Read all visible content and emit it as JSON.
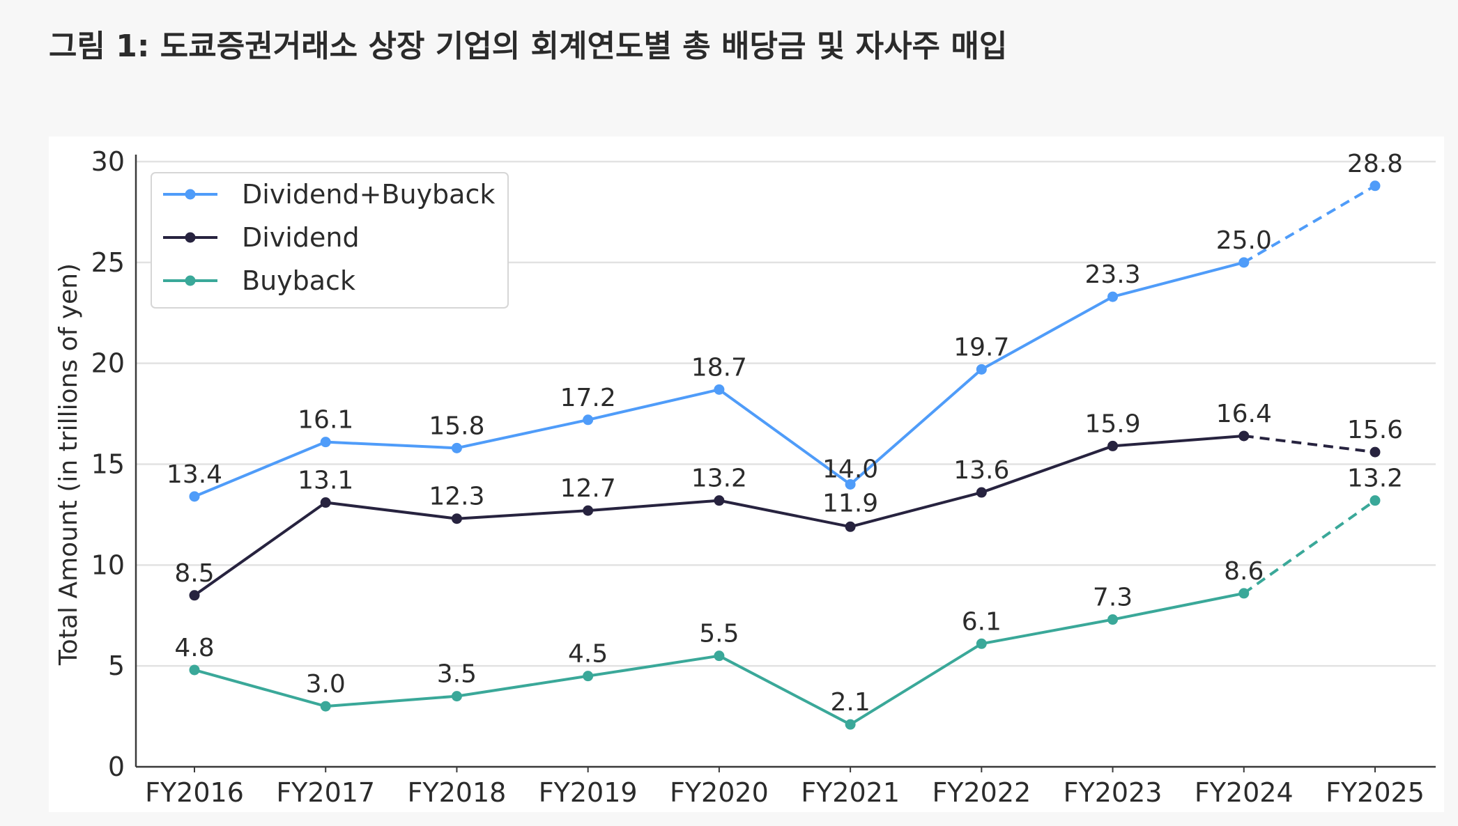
{
  "figure": {
    "title": "그림 1: 도쿄증권거래소 상장 기업의 회계연도별 총 배당금 및 자사주 매입"
  },
  "chart_data": {
    "type": "line",
    "title": "",
    "xlabel": "",
    "ylabel": "Total Amount (in trillions of yen)",
    "ylim": [
      0,
      30
    ],
    "yticks": [
      0,
      5,
      10,
      15,
      20,
      25,
      30
    ],
    "grid": true,
    "legend_position": "top-left",
    "categories": [
      "FY2016",
      "FY2017",
      "FY2018",
      "FY2019",
      "FY2020",
      "FY2021",
      "FY2022",
      "FY2023",
      "FY2024",
      "FY2025"
    ],
    "projected_from_index": 8,
    "series": [
      {
        "name": "Dividend+Buyback",
        "color": "#4f9cf9",
        "values": [
          13.4,
          16.1,
          15.8,
          17.2,
          18.7,
          14.0,
          19.7,
          23.3,
          25.0,
          28.8
        ],
        "labels": [
          "13.4",
          "16.1",
          "15.8",
          "17.2",
          "18.7",
          "14.0",
          "19.7",
          "23.3",
          "25.0",
          "28.8"
        ]
      },
      {
        "name": "Dividend",
        "color": "#27233f",
        "values": [
          8.5,
          13.1,
          12.3,
          12.7,
          13.2,
          11.9,
          13.6,
          15.9,
          16.4,
          15.6
        ],
        "labels": [
          "8.5",
          "13.1",
          "12.3",
          "12.7",
          "13.2",
          "11.9",
          "13.6",
          "15.9",
          "16.4",
          "15.6"
        ]
      },
      {
        "name": "Buyback",
        "color": "#3aa899",
        "values": [
          4.8,
          3.0,
          3.5,
          4.5,
          5.5,
          2.1,
          6.1,
          7.3,
          8.6,
          13.2
        ],
        "labels": [
          "4.8",
          "3.0",
          "3.5",
          "4.5",
          "5.5",
          "2.1",
          "6.1",
          "7.3",
          "8.6",
          "13.2"
        ]
      }
    ]
  }
}
